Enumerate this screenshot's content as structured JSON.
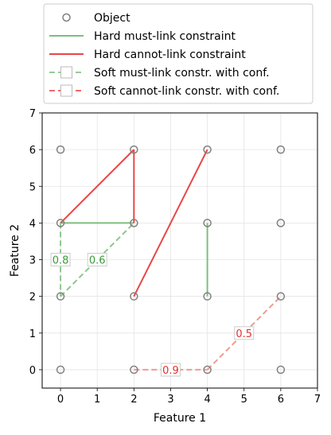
{
  "chart_data": {
    "type": "scatter",
    "title": "",
    "xlabel": "Feature 1",
    "ylabel": "Feature 2",
    "xlim": [
      -0.5,
      7
    ],
    "ylim": [
      -0.5,
      7
    ],
    "xticks": [
      "0",
      "1",
      "2",
      "3",
      "4",
      "5",
      "6",
      "7"
    ],
    "yticks": [
      "0",
      "1",
      "2",
      "3",
      "4",
      "5",
      "6",
      "7"
    ],
    "grid": true,
    "legend_placement": "top-center",
    "legend": [
      {
        "label": "Object",
        "style": "marker",
        "color": "#808080"
      },
      {
        "label": "Hard must-link constraint",
        "style": "solid",
        "color": "#7dbf7d"
      },
      {
        "label": "Hard cannot-link constraint",
        "style": "solid",
        "color": "#ee4444"
      },
      {
        "label": "Soft must-link constr. with conf.",
        "style": "dashed-box",
        "color": "#7dbf7d"
      },
      {
        "label": "Soft cannot-link constr. with conf.",
        "style": "dashed-box",
        "color": "#ee4444"
      }
    ],
    "objects": [
      {
        "x": 0,
        "y": 0
      },
      {
        "x": 2,
        "y": 0
      },
      {
        "x": 4,
        "y": 0
      },
      {
        "x": 6,
        "y": 0
      },
      {
        "x": 0,
        "y": 2
      },
      {
        "x": 2,
        "y": 2
      },
      {
        "x": 4,
        "y": 2
      },
      {
        "x": 6,
        "y": 2
      },
      {
        "x": 0,
        "y": 4
      },
      {
        "x": 2,
        "y": 4
      },
      {
        "x": 4,
        "y": 4
      },
      {
        "x": 6,
        "y": 4
      },
      {
        "x": 0,
        "y": 6
      },
      {
        "x": 2,
        "y": 6
      },
      {
        "x": 4,
        "y": 6
      },
      {
        "x": 6,
        "y": 6
      }
    ],
    "hard_must_link": [
      {
        "from": [
          0,
          4
        ],
        "to": [
          2,
          4
        ]
      },
      {
        "from": [
          4,
          2
        ],
        "to": [
          4,
          4
        ]
      }
    ],
    "hard_cannot_link": [
      {
        "from": [
          0,
          4
        ],
        "to": [
          2,
          6
        ]
      },
      {
        "from": [
          2,
          6
        ],
        "to": [
          2,
          4
        ]
      },
      {
        "from": [
          2,
          2
        ],
        "to": [
          4,
          6
        ]
      }
    ],
    "soft_must_link": [
      {
        "from": [
          0,
          4
        ],
        "to": [
          0,
          2
        ],
        "confidence": "0.8"
      },
      {
        "from": [
          0,
          2
        ],
        "to": [
          2,
          4
        ],
        "confidence": "0.6"
      }
    ],
    "soft_cannot_link": [
      {
        "from": [
          2,
          0
        ],
        "to": [
          4,
          0
        ],
        "confidence": "0.9"
      },
      {
        "from": [
          4,
          0
        ],
        "to": [
          6,
          2
        ],
        "confidence": "0.5"
      }
    ],
    "colors": {
      "object": "#808080",
      "must_link": "#7dbf7d",
      "cannot_link": "#ee4444",
      "soft_must_link": "#8cc88c",
      "soft_cannot_link": "#f09a92",
      "must_label": "#3a9a3a",
      "cannot_label": "#e03030"
    }
  }
}
